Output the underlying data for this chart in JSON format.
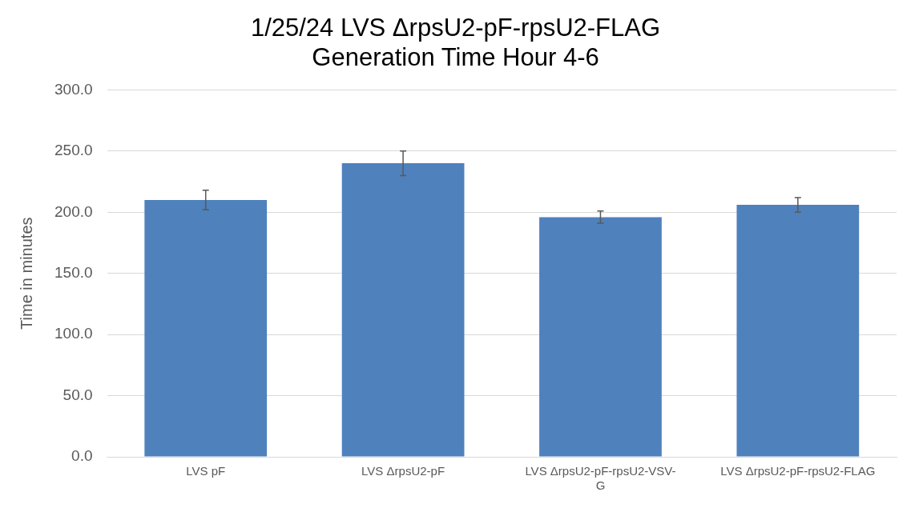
{
  "chart_data": {
    "type": "bar",
    "title": "1/25/24 LVS ΔrpsU2-pF-rpsU2-FLAG  Generation Time Hour 4-6",
    "ylabel": "Time in minutes",
    "categories": [
      "LVS pF",
      "LVS ΔrpsU2-pF",
      "LVS ΔrpsU2-pF-rpsU2-VSV-G",
      "LVS ΔrpsU2-pF-rpsU2-FLAG"
    ],
    "values": [
      210,
      240,
      196,
      206
    ],
    "errors": [
      8,
      10,
      5,
      6
    ],
    "color": "#4f81bd",
    "ylim": [
      0,
      300
    ],
    "yticks": [
      {
        "value": 0,
        "label": "0.0"
      },
      {
        "value": 50,
        "label": "50.0"
      },
      {
        "value": 100,
        "label": "100.0"
      },
      {
        "value": 150,
        "label": "150.0"
      },
      {
        "value": 200,
        "label": "200.0"
      },
      {
        "value": 250,
        "label": "250.0"
      },
      {
        "value": 300,
        "label": "300.0"
      }
    ],
    "grid": "y",
    "legend": false
  }
}
